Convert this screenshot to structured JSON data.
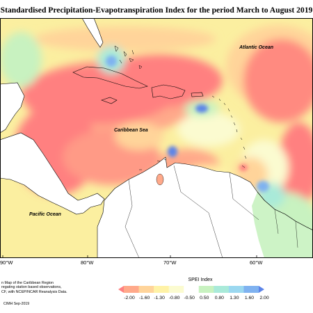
{
  "title": "Standardised Precipitation-Evapotranspiration Index for the period March to August 2019",
  "map": {
    "ocean_labels": {
      "atlantic": "Atlantic Ocean",
      "caribbean": "Caribbean Sea",
      "pacific": "Pacific Ocean"
    },
    "longitude_labels": [
      "90°W",
      "80°W",
      "70°W",
      "60°W"
    ]
  },
  "colorbar": {
    "title": "SPEI Index",
    "ticks": [
      "-2.00",
      "-1.60",
      "-1.30",
      "-0.80",
      "-0.50",
      "0.50",
      "0.80",
      "1.30",
      "1.60",
      "2.00"
    ],
    "colors": [
      "#ff8080",
      "#ffa98a",
      "#ffd49a",
      "#fff2a6",
      "#fbfbd0",
      "#ffffff",
      "#c8f2c0",
      "#a9ead9",
      "#9bd8f0",
      "#7fb2f0",
      "#5c84e8"
    ]
  },
  "footnote": [
    "n Map of the Caribbean Region",
    "regating station based observations,",
    "CF, with NCEP/NCAR Reanalysis Data."
  ],
  "credit": "CIMH Sep-2019"
}
